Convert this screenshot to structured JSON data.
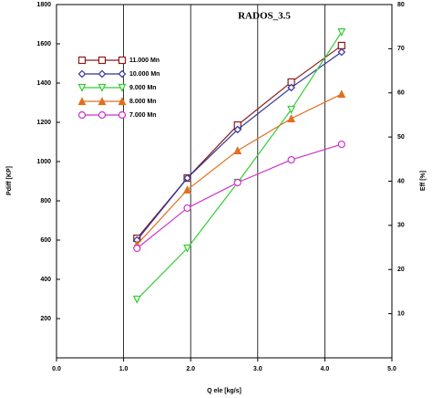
{
  "chart_data": {
    "type": "line",
    "title": "RADOS_3.5",
    "x_label": "Q ele [kg/s]",
    "y_label": "Pdiff [KP]",
    "y2_label": "Eff [%]",
    "x": [
      1.2,
      1.95,
      2.7,
      3.5,
      4.25
    ],
    "xlim": [
      0,
      5
    ],
    "xticks": [
      {
        "value": 0,
        "label": "0.0"
      },
      {
        "value": 1,
        "label": "1.0"
      },
      {
        "value": 2,
        "label": "2.0"
      },
      {
        "value": 3,
        "label": "3.0"
      },
      {
        "value": 4,
        "label": "4.0"
      },
      {
        "value": 5,
        "label": "5.0"
      }
    ],
    "ylim": [
      0,
      1800
    ],
    "yticks": [
      200,
      400,
      600,
      800,
      1000,
      1200,
      1400,
      1600,
      1800
    ],
    "y2lim": [
      0,
      80
    ],
    "y2ticks": [
      10,
      20,
      30,
      40,
      50,
      60,
      70,
      80
    ],
    "grid": true,
    "series": [
      {
        "name": "11.000 Mn",
        "color": "#8b1a1a",
        "marker": "square",
        "values": [
          609,
          916,
          1186,
          1405,
          1591
        ]
      },
      {
        "name": "10.000 Mn",
        "color": "#333399",
        "marker": "diamond",
        "values": [
          600,
          916,
          1163,
          1377,
          1558
        ]
      },
      {
        "name": "9.000 Mn",
        "color": "#33cc33",
        "marker": "triangle-down",
        "values": [
          298,
          558,
          893,
          1265,
          1660
        ]
      },
      {
        "name": "8.000 Mn",
        "color": "#e07020",
        "marker": "triangle-up",
        "values": [
          577,
          856,
          1056,
          1219,
          1344
        ]
      },
      {
        "name": "7.000 Mn",
        "color": "#cc33cc",
        "marker": "circle",
        "values": [
          558,
          763,
          893,
          1009,
          1088
        ]
      }
    ]
  }
}
